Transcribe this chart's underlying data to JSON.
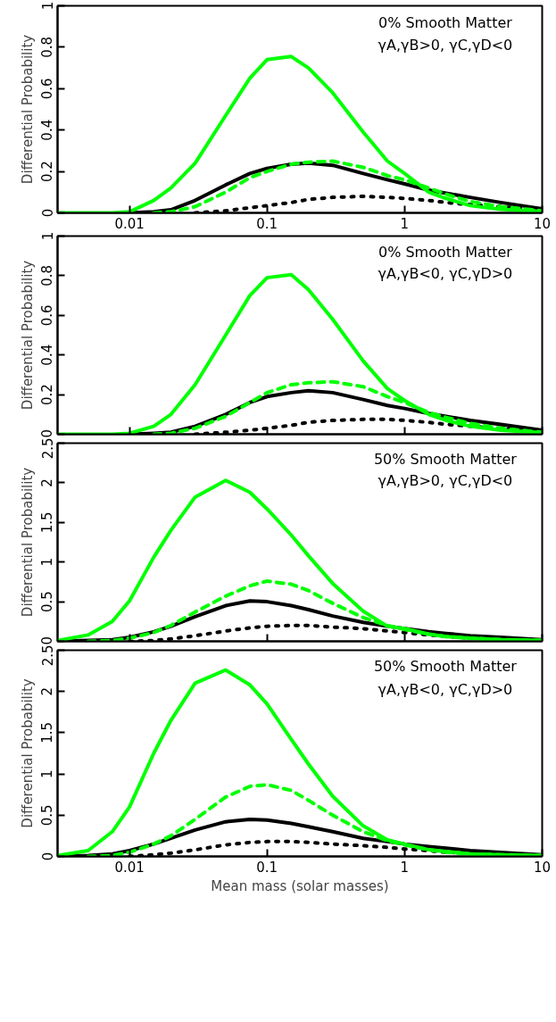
{
  "chart_data": [
    {
      "type": "line",
      "ylabel": "Differential Probability",
      "annotations": [
        "0% Smooth Matter",
        "γA,γB>0, γC,γD<0"
      ],
      "grid": false,
      "x": [
        0.003,
        0.005,
        0.0075,
        0.01,
        0.015,
        0.02,
        0.03,
        0.05,
        0.075,
        0.1,
        0.15,
        0.2,
        0.3,
        0.5,
        0.75,
        1,
        1.5,
        2,
        3,
        5,
        10
      ],
      "xlim": [
        0.003,
        10
      ],
      "xticks": [
        0.01,
        0.1,
        1,
        10
      ],
      "ylim": [
        0,
        1
      ],
      "yticks": [
        0,
        0.2,
        0.4,
        0.6,
        0.8,
        1
      ],
      "log": "x",
      "series": [
        {
          "color": "#000000",
          "line_style": "dotted",
          "values": [
            null,
            null,
            null,
            null,
            null,
            null,
            0,
            0.01,
            0.025,
            0.035,
            0.05,
            0.065,
            0.075,
            0.08,
            0.075,
            0.07,
            0.06,
            0.05,
            0.04,
            0.03,
            0.015
          ]
        },
        {
          "color": "#000000",
          "line_style": "solid",
          "values": [
            null,
            null,
            null,
            0,
            0.005,
            0.015,
            0.06,
            0.135,
            0.19,
            0.215,
            0.235,
            0.24,
            0.23,
            0.19,
            0.16,
            0.14,
            0.11,
            0.095,
            0.075,
            0.05,
            0.02
          ]
        },
        {
          "color": "#00ff00",
          "line_style": "dashed",
          "values": [
            null,
            null,
            null,
            null,
            0,
            0.005,
            0.03,
            0.1,
            0.17,
            0.2,
            0.235,
            0.245,
            0.25,
            0.22,
            0.18,
            0.16,
            0.12,
            0.09,
            0.055,
            0.03,
            0.01
          ]
        },
        {
          "color": "#00ff00",
          "line_style": "solid",
          "values": [
            0,
            0,
            0,
            0.005,
            0.06,
            0.12,
            0.24,
            0.47,
            0.65,
            0.74,
            0.755,
            0.7,
            0.58,
            0.39,
            0.25,
            0.19,
            0.1,
            0.07,
            0.035,
            0.017,
            0.007
          ]
        }
      ]
    },
    {
      "type": "line",
      "ylabel": "Differential Probability",
      "annotations": [
        "0% Smooth Matter",
        "γA,γB<0, γC,γD>0"
      ],
      "grid": false,
      "tick_labels": "y",
      "x": [
        0.003,
        0.005,
        0.0075,
        0.01,
        0.015,
        0.02,
        0.03,
        0.05,
        0.075,
        0.1,
        0.15,
        0.2,
        0.3,
        0.5,
        0.75,
        1,
        1.5,
        2,
        3,
        5,
        10
      ],
      "xlim": [
        0.003,
        10
      ],
      "xticks": [
        0.01,
        0.1,
        1,
        10
      ],
      "ylim": [
        0,
        1
      ],
      "yticks": [
        0,
        0.2,
        0.4,
        0.6,
        0.8,
        1
      ],
      "log": "x",
      "series": [
        {
          "color": "#000000",
          "line_style": "dotted",
          "values": [
            null,
            null,
            null,
            null,
            null,
            null,
            0,
            0.01,
            0.02,
            0.03,
            0.045,
            0.06,
            0.07,
            0.075,
            0.075,
            0.07,
            0.06,
            0.05,
            0.04,
            0.03,
            0.015
          ]
        },
        {
          "color": "#000000",
          "line_style": "solid",
          "values": [
            null,
            null,
            null,
            0,
            0.005,
            0.01,
            0.04,
            0.1,
            0.16,
            0.19,
            0.21,
            0.22,
            0.21,
            0.175,
            0.145,
            0.13,
            0.105,
            0.09,
            0.07,
            0.05,
            0.02
          ]
        },
        {
          "color": "#00ff00",
          "line_style": "dashed",
          "values": [
            null,
            null,
            null,
            null,
            0,
            0.005,
            0.03,
            0.09,
            0.16,
            0.21,
            0.25,
            0.26,
            0.265,
            0.24,
            0.19,
            0.16,
            0.11,
            0.085,
            0.055,
            0.03,
            0.01
          ]
        },
        {
          "color": "#00ff00",
          "line_style": "solid",
          "values": [
            0,
            0,
            0,
            0.005,
            0.04,
            0.1,
            0.25,
            0.5,
            0.7,
            0.79,
            0.805,
            0.73,
            0.58,
            0.37,
            0.23,
            0.17,
            0.1,
            0.07,
            0.04,
            0.02,
            0.008
          ]
        }
      ]
    },
    {
      "type": "line",
      "ylabel": "Differential Probability",
      "annotations": [
        "50% Smooth Matter",
        "γA,γB>0, γC,γD<0"
      ],
      "grid": false,
      "tick_labels": "y",
      "x": [
        0.003,
        0.005,
        0.0075,
        0.01,
        0.015,
        0.02,
        0.03,
        0.05,
        0.075,
        0.1,
        0.15,
        0.2,
        0.3,
        0.5,
        0.75,
        1,
        1.5,
        2,
        3,
        5,
        10
      ],
      "xlim": [
        0.003,
        10
      ],
      "xticks": [
        0.01,
        0.1,
        1,
        10
      ],
      "ylim": [
        0,
        2.5
      ],
      "yticks": [
        0,
        0.5,
        1,
        1.5,
        2,
        2.5
      ],
      "log": "x",
      "series": [
        {
          "color": "#000000",
          "line_style": "dotted",
          "values": [
            null,
            null,
            null,
            0,
            0.01,
            0.03,
            0.07,
            0.13,
            0.17,
            0.19,
            0.2,
            0.2,
            0.18,
            0.16,
            0.13,
            0.11,
            0.08,
            0.06,
            0.04,
            0.03,
            0.01
          ]
        },
        {
          "color": "#000000",
          "line_style": "solid",
          "values": [
            0,
            0.01,
            0.02,
            0.05,
            0.12,
            0.19,
            0.31,
            0.45,
            0.51,
            0.5,
            0.45,
            0.4,
            0.32,
            0.24,
            0.19,
            0.16,
            0.12,
            0.1,
            0.07,
            0.05,
            0.02
          ]
        },
        {
          "color": "#00ff00",
          "line_style": "dashed",
          "values": [
            null,
            0,
            0.01,
            0.04,
            0.11,
            0.2,
            0.37,
            0.57,
            0.7,
            0.76,
            0.72,
            0.64,
            0.48,
            0.3,
            0.2,
            0.15,
            0.09,
            0.06,
            0.04,
            0.02,
            0.01
          ]
        },
        {
          "color": "#00ff00",
          "line_style": "solid",
          "values": [
            0.01,
            0.08,
            0.25,
            0.51,
            1.06,
            1.4,
            1.82,
            2.03,
            1.88,
            1.67,
            1.34,
            1.08,
            0.73,
            0.38,
            0.19,
            0.16,
            0.09,
            0.06,
            0.04,
            0.02,
            0.01
          ]
        }
      ]
    },
    {
      "type": "line",
      "xlabel": "Mean mass (solar masses)",
      "ylabel": "Differential Probability",
      "annotations": [
        "50% Smooth Matter",
        "γA,γB<0, γC,γD>0"
      ],
      "grid": false,
      "x": [
        0.003,
        0.005,
        0.0075,
        0.01,
        0.015,
        0.02,
        0.03,
        0.05,
        0.075,
        0.1,
        0.15,
        0.2,
        0.3,
        0.5,
        0.75,
        1,
        1.5,
        2,
        3,
        5,
        10
      ],
      "xlim": [
        0.003,
        10
      ],
      "xticks": [
        0.01,
        0.1,
        1,
        10
      ],
      "ylim": [
        0,
        2.5
      ],
      "yticks": [
        0,
        0.5,
        1,
        1.5,
        2,
        2.5
      ],
      "log": "x",
      "series": [
        {
          "color": "#000000",
          "line_style": "dotted",
          "values": [
            null,
            null,
            null,
            0,
            0.02,
            0.04,
            0.08,
            0.14,
            0.17,
            0.18,
            0.18,
            0.17,
            0.15,
            0.13,
            0.11,
            0.09,
            0.07,
            0.05,
            0.04,
            0.02,
            0.01
          ]
        },
        {
          "color": "#000000",
          "line_style": "solid",
          "values": [
            0,
            0.01,
            0.03,
            0.07,
            0.15,
            0.22,
            0.32,
            0.42,
            0.45,
            0.44,
            0.4,
            0.36,
            0.3,
            0.22,
            0.18,
            0.15,
            0.12,
            0.1,
            0.07,
            0.05,
            0.02
          ]
        },
        {
          "color": "#00ff00",
          "line_style": "dashed",
          "values": [
            null,
            0,
            0.01,
            0.05,
            0.15,
            0.25,
            0.45,
            0.72,
            0.85,
            0.87,
            0.8,
            0.68,
            0.5,
            0.3,
            0.19,
            0.14,
            0.08,
            0.05,
            0.03,
            0.02,
            0.01
          ]
        },
        {
          "color": "#00ff00",
          "line_style": "solid",
          "values": [
            0.01,
            0.07,
            0.3,
            0.6,
            1.25,
            1.65,
            2.1,
            2.26,
            2.08,
            1.85,
            1.42,
            1.12,
            0.73,
            0.37,
            0.2,
            0.15,
            0.08,
            0.06,
            0.03,
            0.02,
            0.01
          ]
        }
      ]
    }
  ]
}
